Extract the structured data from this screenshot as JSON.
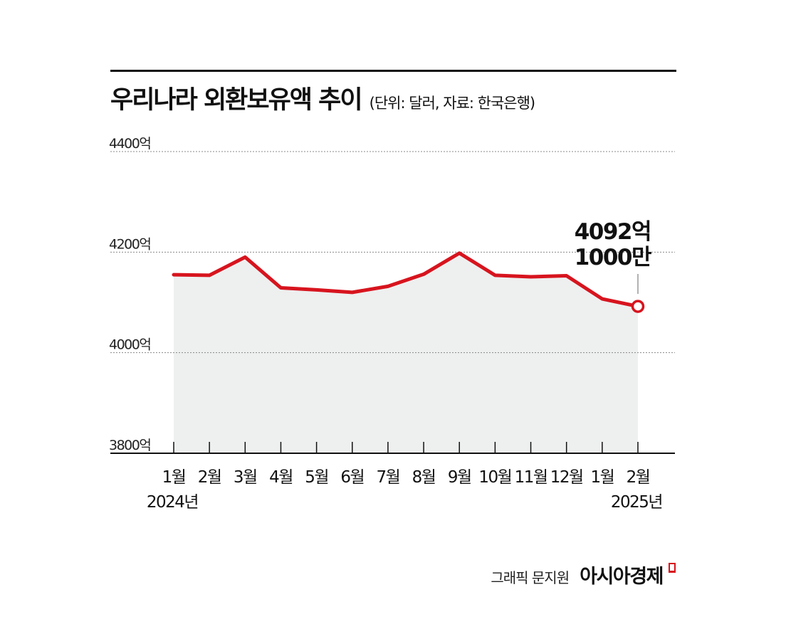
{
  "header": {
    "title": "우리나라 외환보유액 추이",
    "subtitle": "(단위: 달러, 자료: 한국은행)"
  },
  "chart_data": {
    "type": "area",
    "title": "우리나라 외환보유액 추이",
    "unit_note": "(단위: 달러, 자료: 한국은행)",
    "categories": [
      "1월",
      "2월",
      "3월",
      "4월",
      "5월",
      "6월",
      "7월",
      "8월",
      "9월",
      "10월",
      "11월",
      "12월",
      "1월",
      "2월"
    ],
    "year_labels": [
      {
        "index": 0,
        "label": "2024년"
      },
      {
        "index": 13,
        "label": "2025년"
      }
    ],
    "series": [
      {
        "values": [
          4155,
          4154,
          4190,
          4129,
          4125,
          4120,
          4132,
          4156,
          4198,
          4154,
          4151,
          4153,
          4107,
          4092.1
        ]
      }
    ],
    "ylim": [
      3800,
      4400
    ],
    "yticks": [
      {
        "value": 4400,
        "label": "4400억"
      },
      {
        "value": 4200,
        "label": "4200억"
      },
      {
        "value": 4000,
        "label": "4000억"
      },
      {
        "value": 3800,
        "label": "3800억"
      }
    ],
    "annotation": {
      "index": 13,
      "line1": "4092억",
      "line2": "1000만"
    },
    "colors": {
      "line": "#d7141e",
      "area": "#eeefef",
      "grid": "#888888",
      "axis": "#111111"
    },
    "grid": true
  },
  "footer": {
    "credit": "그래픽 문지원",
    "brand": "아시아경제"
  }
}
